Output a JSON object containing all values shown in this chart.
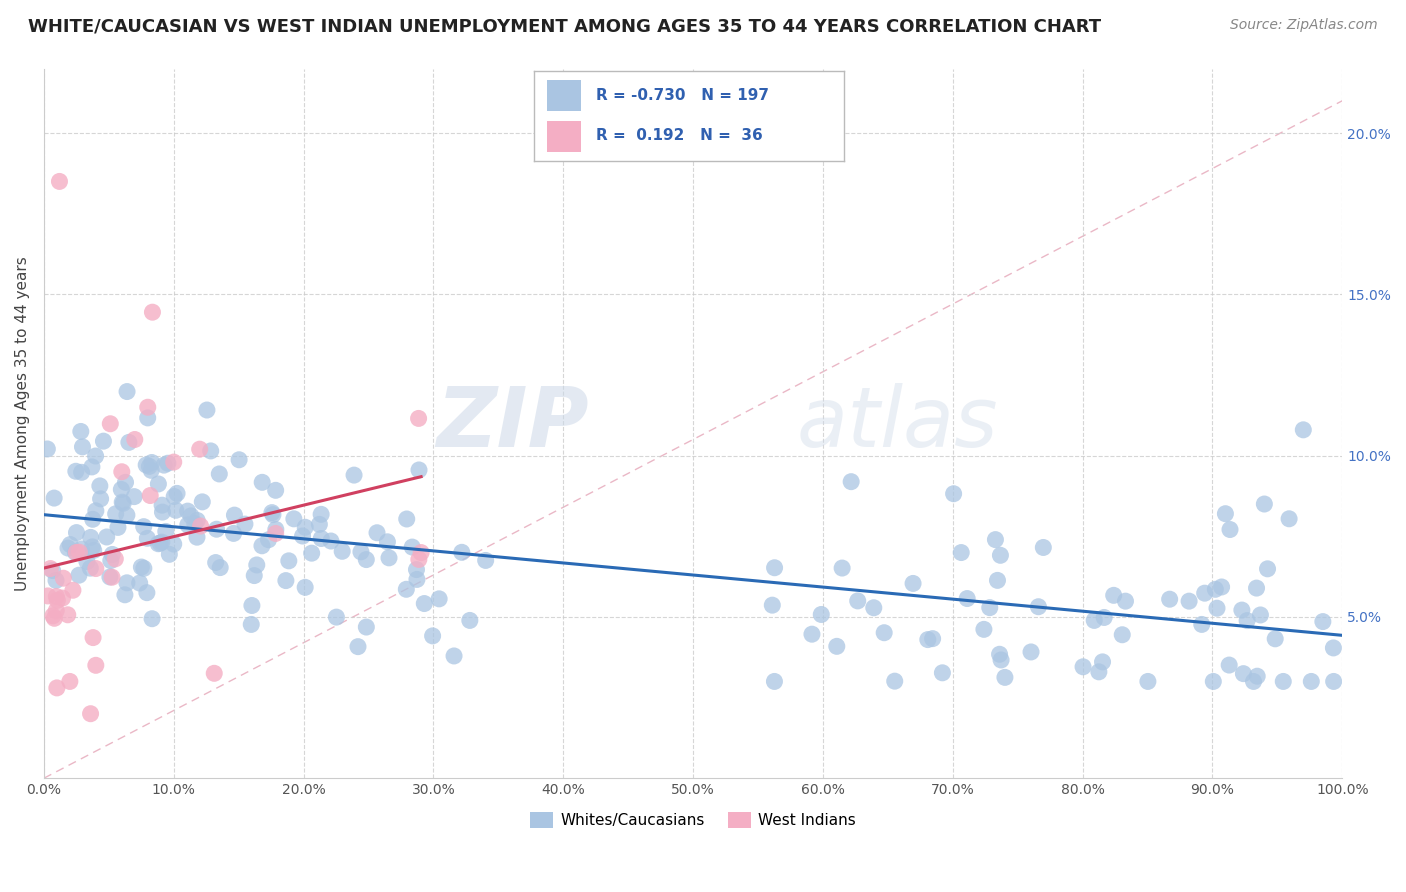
{
  "title": "WHITE/CAUCASIAN VS WEST INDIAN UNEMPLOYMENT AMONG AGES 35 TO 44 YEARS CORRELATION CHART",
  "source": "Source: ZipAtlas.com",
  "ylabel": "Unemployment Among Ages 35 to 44 years",
  "xlim": [
    0.0,
    1.0
  ],
  "ylim": [
    0.0,
    0.22
  ],
  "xticks": [
    0.0,
    0.1,
    0.2,
    0.3,
    0.4,
    0.5,
    0.6,
    0.7,
    0.8,
    0.9,
    1.0
  ],
  "yticks": [
    0.05,
    0.1,
    0.15,
    0.2
  ],
  "blue_color": "#aac5e2",
  "pink_color": "#f4aec4",
  "blue_line_color": "#2a6ab5",
  "pink_line_color": "#d04060",
  "diag_line_color": "#e8b0c0",
  "R_blue": -0.73,
  "N_blue": 197,
  "R_pink": 0.192,
  "N_pink": 36,
  "legend_label_blue": "Whites/Caucasians",
  "legend_label_pink": "West Indians",
  "watermark_zip": "ZIP",
  "watermark_atlas": "atlas",
  "seed": 123
}
